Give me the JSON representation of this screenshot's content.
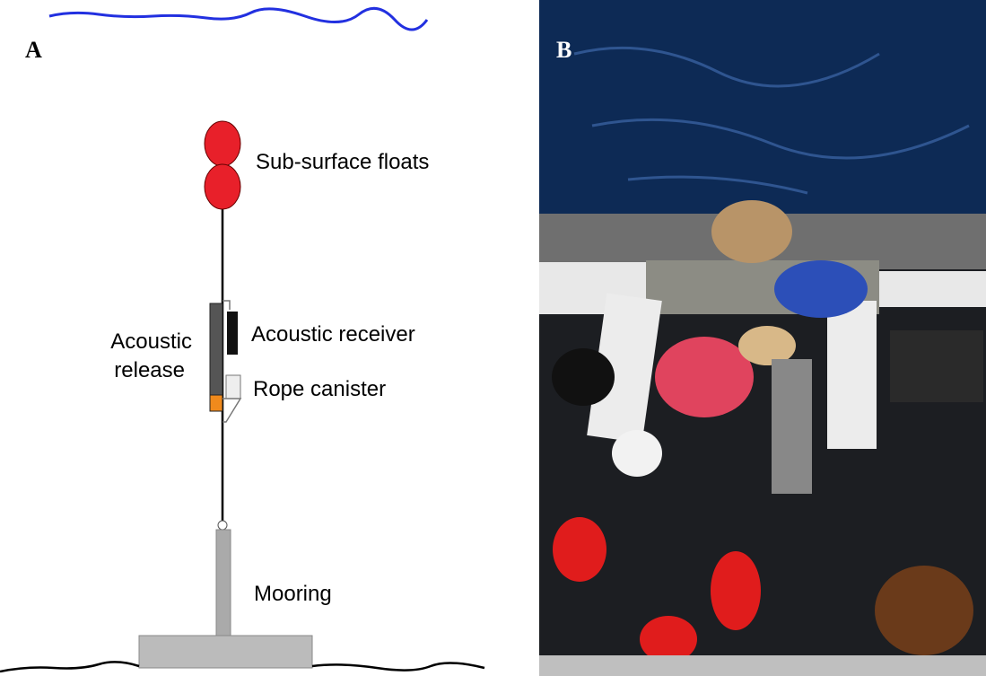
{
  "panel_a": {
    "label": "A",
    "labels": {
      "floats": "Sub-surface floats",
      "receiver": "Acoustic receiver",
      "release": [
        "Acoustic",
        "release"
      ],
      "canister": "Rope canister",
      "mooring": "Mooring"
    }
  },
  "panel_b": {
    "label": "B"
  }
}
